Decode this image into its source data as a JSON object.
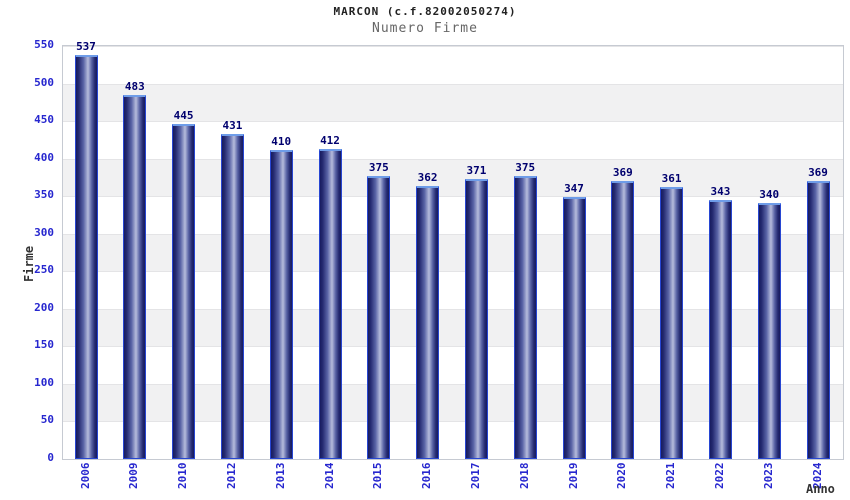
{
  "header": {
    "title": "MARCON (c.f.82002050274)",
    "subtitle": "Numero Firme"
  },
  "chart_data": {
    "type": "bar",
    "title": "MARCON (c.f.82002050274)",
    "subtitle": "Numero Firme",
    "xlabel": "Anno",
    "ylabel": "Firme",
    "categories": [
      "2006",
      "2009",
      "2010",
      "2012",
      "2013",
      "2014",
      "2015",
      "2016",
      "2017",
      "2018",
      "2019",
      "2020",
      "2021",
      "2022",
      "2023",
      "2024"
    ],
    "values": [
      537,
      483,
      445,
      431,
      410,
      412,
      375,
      362,
      371,
      375,
      347,
      369,
      361,
      343,
      340,
      369
    ],
    "value_labels_shown": true,
    "ylim": [
      0,
      550
    ],
    "yticks": [
      550,
      500,
      450,
      400,
      350,
      300,
      250,
      200,
      150,
      100,
      50,
      0
    ],
    "grid": "horizontal bands every 50 units alternating white and light gray, white at top (550-500)",
    "legend_position": "none",
    "colors": {
      "title_color": "#222222",
      "subtitle_color": "#666666",
      "axis_titles": "#333333",
      "tick_labels": "#2727cf",
      "value_labels": "#00006e",
      "bar_border": "#2746d2",
      "bar_border_top": "#6e9ce8",
      "bar_dark": "#181c5e",
      "bar_mid": "#5a64a6",
      "bar_highlight": "#b6bcdc",
      "band_alt": "#f1f1f2",
      "gridline": "#e4e4e6",
      "plot_border": "#c6cad2"
    }
  }
}
